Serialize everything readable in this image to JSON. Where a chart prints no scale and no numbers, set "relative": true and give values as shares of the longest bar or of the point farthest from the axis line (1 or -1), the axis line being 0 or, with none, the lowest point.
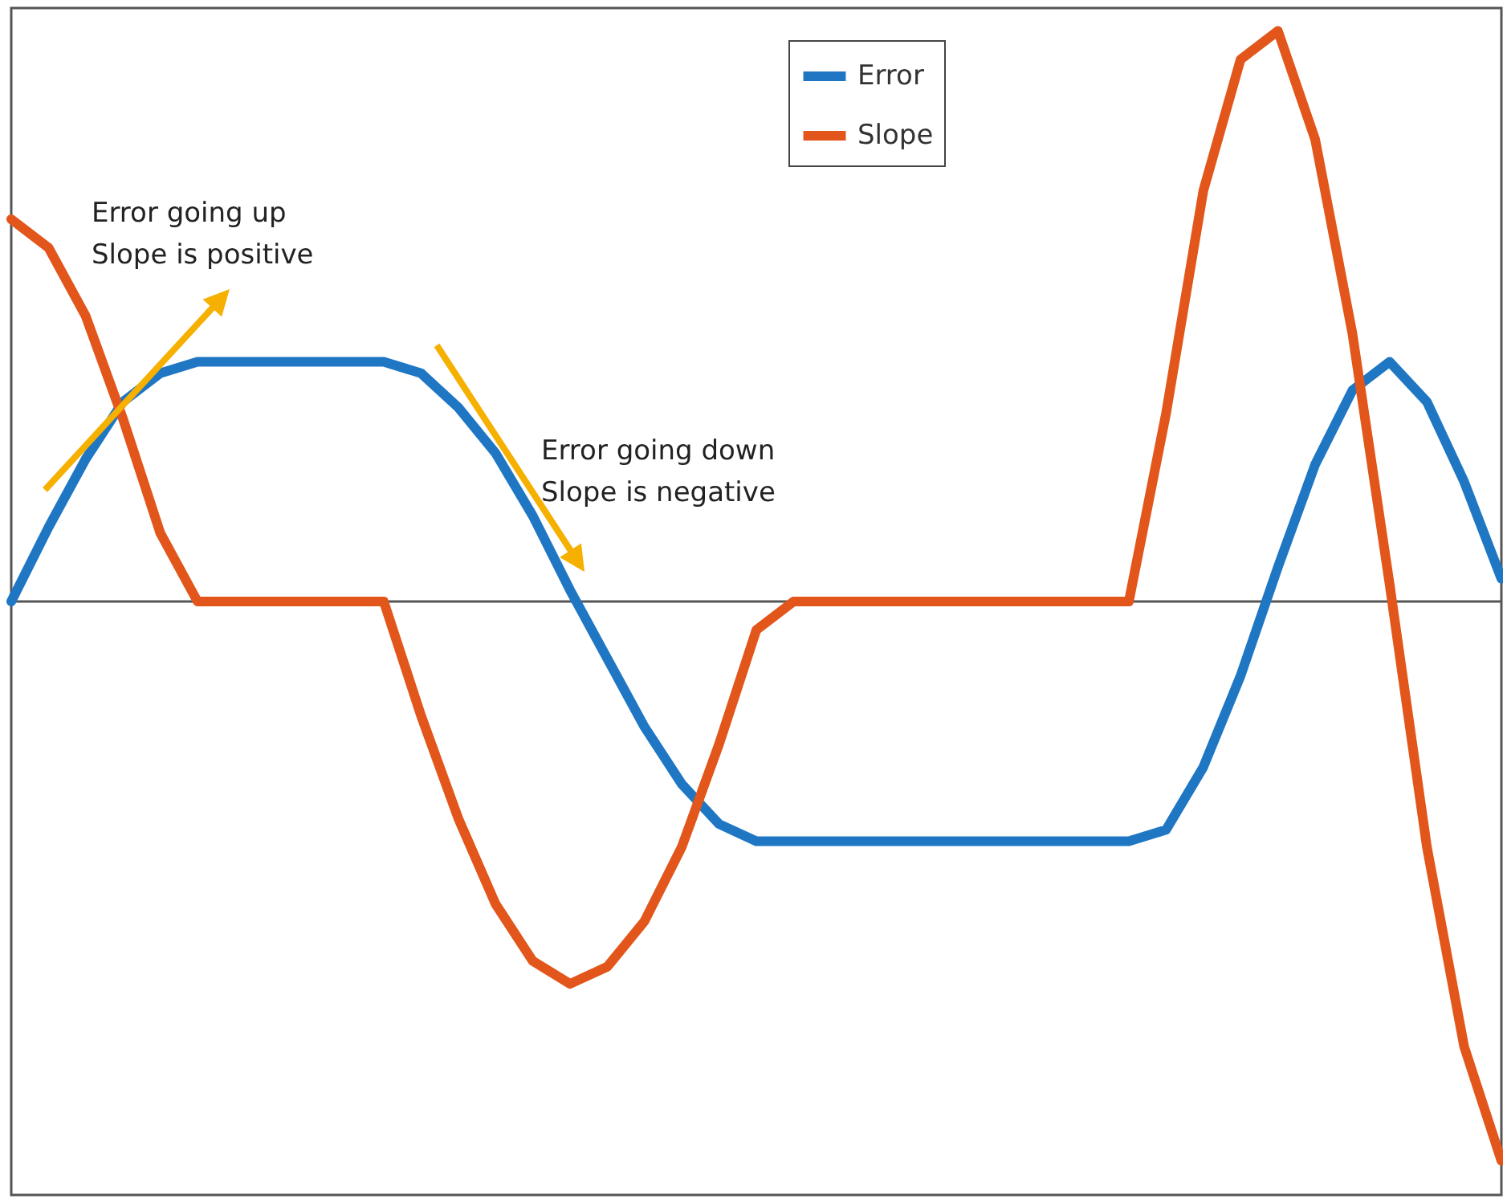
{
  "chart_data": {
    "type": "line",
    "relative": true,
    "categories": [
      null,
      null,
      null,
      null,
      null,
      null,
      null,
      null,
      null,
      null,
      null,
      null,
      null,
      null,
      null,
      null,
      null,
      null,
      null,
      null,
      null,
      null,
      null,
      null,
      null,
      null,
      null,
      null,
      null,
      null,
      null,
      null,
      null,
      null,
      null,
      null,
      null,
      null,
      null,
      null,
      null
    ],
    "series": [
      {
        "name": "Error",
        "color": "#1f77c4",
        "values": [
          0,
          0.13,
          0.25,
          0.35,
          0.4,
          0.42,
          0.42,
          0.42,
          0.42,
          0.42,
          0.42,
          0.4,
          0.34,
          0.26,
          0.15,
          0.02,
          -0.1,
          -0.22,
          -0.32,
          -0.39,
          -0.42,
          -0.42,
          -0.42,
          -0.42,
          -0.42,
          -0.42,
          -0.42,
          -0.42,
          -0.42,
          -0.42,
          -0.42,
          -0.4,
          -0.29,
          -0.13,
          0.06,
          0.24,
          0.37,
          0.42,
          0.35,
          0.21,
          0.04
        ]
      },
      {
        "name": "Slope",
        "color": "#e2561c",
        "values": [
          0.67,
          0.62,
          0.5,
          0.32,
          0.12,
          0,
          0,
          0,
          0,
          0,
          0,
          -0.2,
          -0.38,
          -0.53,
          -0.63,
          -0.67,
          -0.64,
          -0.56,
          -0.43,
          -0.25,
          -0.05,
          0,
          0,
          0,
          0,
          0,
          0,
          0,
          0,
          0,
          0,
          0.33,
          0.72,
          0.95,
          1,
          0.81,
          0.47,
          0.03,
          -0.43,
          -0.78,
          -0.98
        ]
      }
    ],
    "legend": "top",
    "line_style": "solid",
    "annotations": [
      "Error going up\nSlope is positive",
      "Error going down\nSlope is negative"
    ]
  }
}
